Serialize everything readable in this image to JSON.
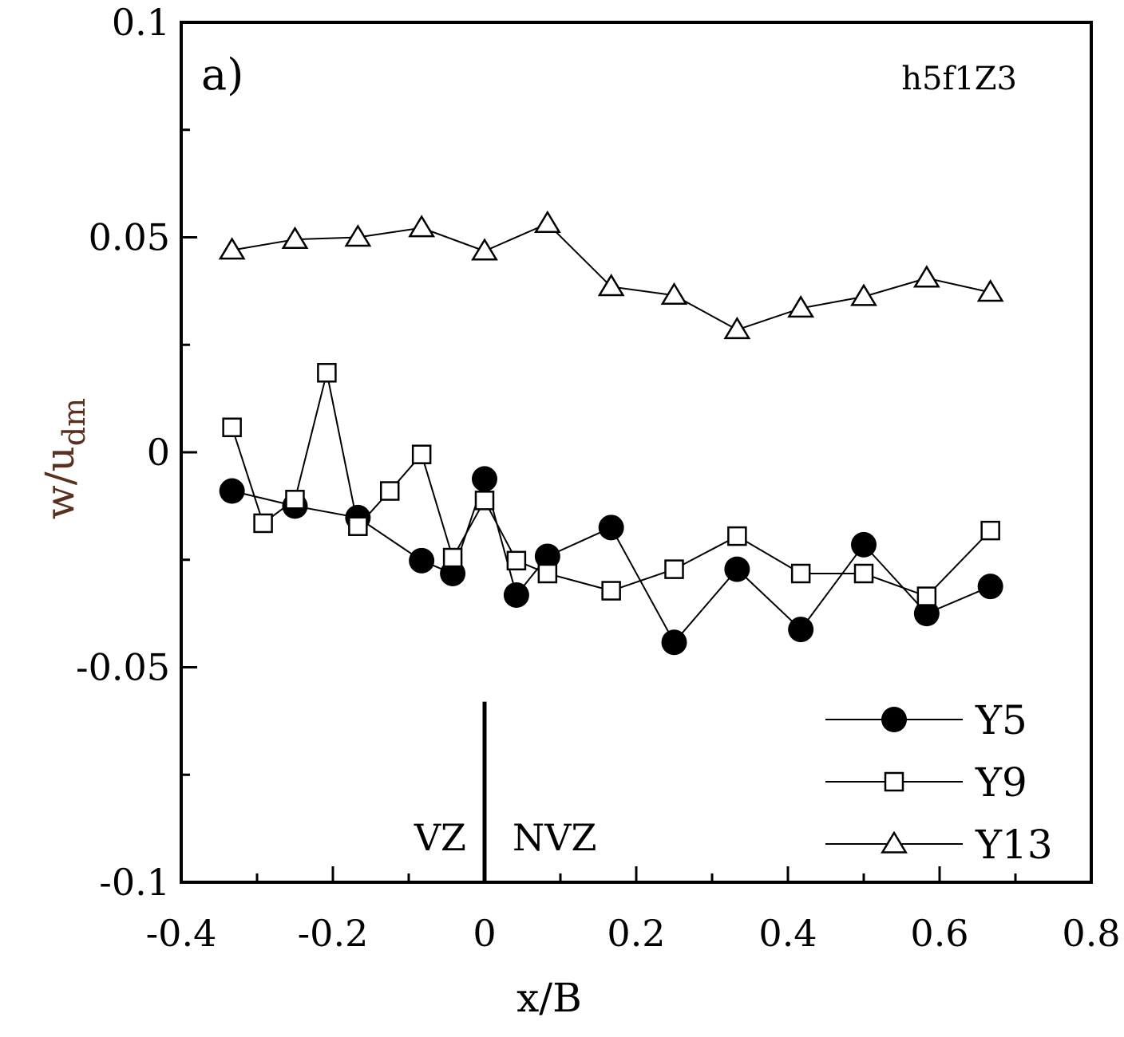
{
  "chart_data": {
    "type": "line",
    "panel_label": "a)",
    "case_label": "h5f1Z3",
    "xlabel": "x/B",
    "ylabel_main": "w/u",
    "ylabel_sub": "dm",
    "xlim": [
      -0.4,
      0.8
    ],
    "ylim": [
      -0.1,
      0.1
    ],
    "x_ticks": [
      -0.4,
      -0.2,
      0,
      0.2,
      0.4,
      0.6,
      0.8
    ],
    "x_tick_labels": [
      "-0.4",
      "-0.2",
      "0",
      "0.2",
      "0.4",
      "0.6",
      "0.8"
    ],
    "y_ticks": [
      -0.1,
      -0.05,
      0,
      0.05,
      0.1
    ],
    "y_tick_labels": [
      "-0.1",
      "-0.05",
      "0",
      "0.05",
      "0.1"
    ],
    "zone_divider_x": 0,
    "zone_divider_y_range": [
      -0.1,
      -0.058
    ],
    "zone_left_label": "VZ",
    "zone_right_label": "NVZ",
    "legend_position": "bottom-right",
    "series": [
      {
        "name": "Y5",
        "marker": "filled-circle",
        "x": [
          -0.333,
          -0.25,
          -0.167,
          -0.083,
          -0.042,
          0,
          0.042,
          0.083,
          0.167,
          0.25,
          0.333,
          0.417,
          0.5,
          0.583,
          0.667
        ],
        "y": [
          -0.009,
          -0.0125,
          -0.0152,
          -0.0252,
          -0.0282,
          -0.0062,
          -0.0332,
          -0.0242,
          -0.0175,
          -0.0442,
          -0.0272,
          -0.0412,
          -0.0215,
          -0.0375,
          -0.0312
        ]
      },
      {
        "name": "Y9",
        "marker": "open-square",
        "x": [
          -0.333,
          -0.292,
          -0.25,
          -0.208,
          -0.167,
          -0.125,
          -0.083,
          -0.042,
          0,
          0.042,
          0.083,
          0.167,
          0.25,
          0.333,
          0.417,
          0.5,
          0.583,
          0.667
        ],
        "y": [
          0.0058,
          -0.0165,
          -0.011,
          0.0185,
          -0.0172,
          -0.009,
          -0.0005,
          -0.0245,
          -0.0112,
          -0.0252,
          -0.0282,
          -0.0322,
          -0.0272,
          -0.0195,
          -0.0282,
          -0.0282,
          -0.0335,
          -0.0182
        ]
      },
      {
        "name": "Y13",
        "marker": "open-triangle",
        "x": [
          -0.333,
          -0.25,
          -0.167,
          -0.083,
          0,
          0.083,
          0.167,
          0.25,
          0.333,
          0.417,
          0.5,
          0.583,
          0.667
        ],
        "y": [
          0.047,
          0.0495,
          0.05,
          0.0522,
          0.0468,
          0.0532,
          0.0385,
          0.0365,
          0.0285,
          0.0335,
          0.0362,
          0.0405,
          0.0372
        ]
      }
    ]
  }
}
